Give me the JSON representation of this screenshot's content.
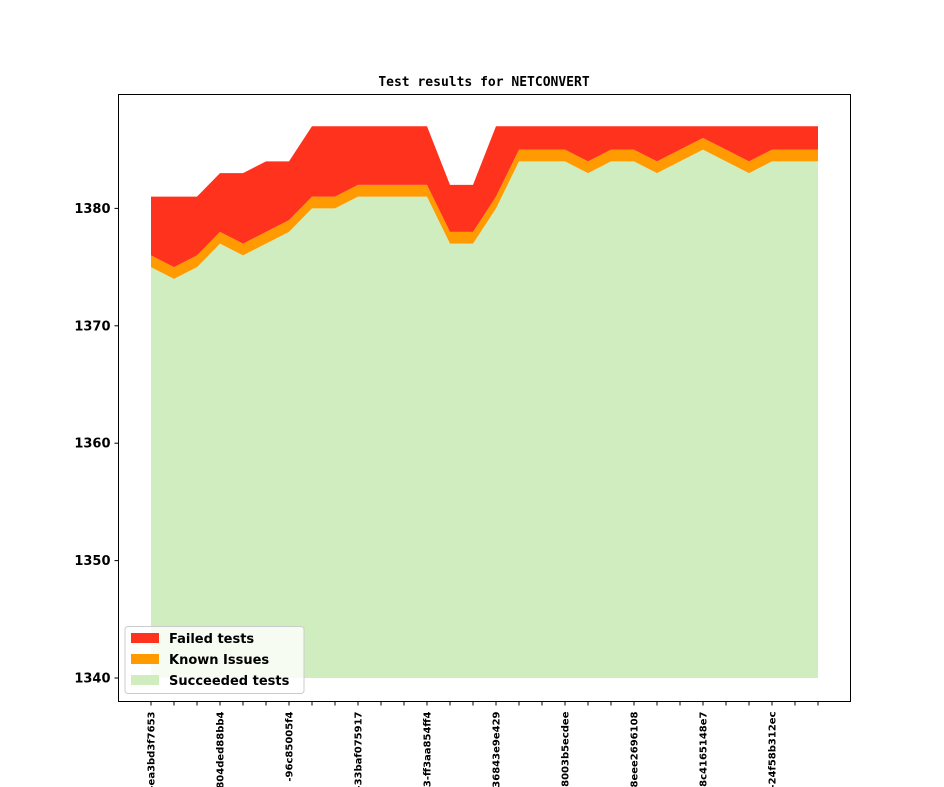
{
  "chart_data": {
    "type": "area",
    "title": "Test results for NETCONVERT",
    "xlabel": "",
    "ylabel": "",
    "ylim": [
      1338,
      1389.7
    ],
    "yticks": [
      1340,
      1350,
      1360,
      1370,
      1380
    ],
    "baseline": 1340,
    "x_count": 30,
    "x_tick_labels": [
      {
        "index": 0,
        "label": "-ea3bd3f7653"
      },
      {
        "index": 3,
        "label": "804ded88bb4"
      },
      {
        "index": 6,
        "label": "-96c85005f4"
      },
      {
        "index": 9,
        "label": "-33baf075917"
      },
      {
        "index": 12,
        "label": "3-ff3aa854ff4"
      },
      {
        "index": 15,
        "label": "36843e9e429"
      },
      {
        "index": 18,
        "label": "8003b5ecdee"
      },
      {
        "index": 21,
        "label": "8eee2696108"
      },
      {
        "index": 24,
        "label": "8c4165148e7"
      },
      {
        "index": 27,
        "label": "-24f58b312ec"
      }
    ],
    "series": [
      {
        "name": "Succeeded tests",
        "color": "#cfedbe",
        "values": [
          1375,
          1374,
          1375,
          1377,
          1376,
          1377,
          1378,
          1380,
          1380,
          1381,
          1381,
          1381,
          1381,
          1377,
          1377,
          1380,
          1384,
          1384,
          1384,
          1383,
          1384,
          1384,
          1383,
          1384,
          1385,
          1384,
          1383,
          1384,
          1384,
          1384
        ]
      },
      {
        "name": "Known Issues",
        "color": "#ff9a00",
        "values": [
          1,
          1,
          1,
          1,
          1,
          1,
          1,
          1,
          1,
          1,
          1,
          1,
          1,
          1,
          1,
          1,
          1,
          1,
          1,
          1,
          1,
          1,
          1,
          1,
          1,
          1,
          1,
          1,
          1,
          1
        ]
      },
      {
        "name": "Failed tests",
        "color": "#ff321e",
        "values": [
          5,
          6,
          5,
          5,
          6,
          6,
          5,
          6,
          6,
          5,
          5,
          5,
          5,
          4,
          4,
          6,
          2,
          2,
          2,
          3,
          2,
          2,
          3,
          2,
          1,
          2,
          3,
          2,
          2,
          2
        ]
      }
    ],
    "legend_position": "lower-left",
    "grid": false
  }
}
